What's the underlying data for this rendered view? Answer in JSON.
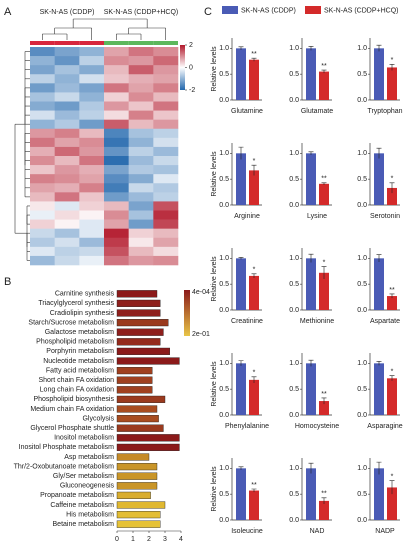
{
  "chart_data": [
    {
      "type": "heatmap",
      "label": "A",
      "groups": [
        "SK-N-AS (CDDP)",
        "SK-N-AS (CDDP+HCQ)"
      ],
      "group_colors": [
        "#d7263d",
        "#5cb85c"
      ],
      "colorscale": [
        "#2166ac",
        "#ffffff",
        "#b2182b"
      ],
      "zlim": [
        -2,
        2
      ],
      "zticks": [
        2,
        0,
        -2
      ],
      "z": [
        [
          -1.5,
          -1.2,
          -1.0,
          0.8,
          1.2,
          1.0
        ],
        [
          -1.0,
          -1.4,
          -0.6,
          1.0,
          0.9,
          1.3
        ],
        [
          -1.2,
          -0.8,
          -1.1,
          0.6,
          1.4,
          0.9
        ],
        [
          -0.6,
          -1.0,
          -0.4,
          0.5,
          0.7,
          0.8
        ],
        [
          -1.3,
          -0.9,
          -1.2,
          1.2,
          0.8,
          1.1
        ],
        [
          -0.8,
          -0.5,
          -1.0,
          0.4,
          1.0,
          0.6
        ],
        [
          -1.1,
          -1.3,
          -0.7,
          0.9,
          0.5,
          1.2
        ],
        [
          -0.4,
          -0.9,
          -0.6,
          0.3,
          1.1,
          0.5
        ],
        [
          -1.0,
          -0.7,
          -1.3,
          1.4,
          0.6,
          0.9
        ],
        [
          0.9,
          1.1,
          0.6,
          -1.6,
          -0.8,
          -0.6
        ],
        [
          1.2,
          0.8,
          1.0,
          -1.8,
          -1.0,
          -0.4
        ],
        [
          0.7,
          1.3,
          0.9,
          -1.4,
          -0.6,
          -0.9
        ],
        [
          1.0,
          0.6,
          1.2,
          -1.9,
          -0.9,
          -0.5
        ],
        [
          0.5,
          0.9,
          0.7,
          -1.2,
          -0.7,
          -0.8
        ],
        [
          1.1,
          1.0,
          0.8,
          -1.5,
          -1.1,
          -0.3
        ],
        [
          0.8,
          0.7,
          1.1,
          -1.7,
          -0.5,
          -0.7
        ],
        [
          0.6,
          1.2,
          0.5,
          -1.3,
          -0.9,
          -0.6
        ],
        [
          0.2,
          -0.3,
          0.4,
          0.6,
          -1.2,
          1.5
        ],
        [
          -0.2,
          0.3,
          0.1,
          1.0,
          -0.8,
          1.8
        ],
        [
          0.4,
          0.1,
          -0.3,
          0.8,
          -1.3,
          1.6
        ],
        [
          -0.5,
          -0.8,
          -0.3,
          1.9,
          0.4,
          0.6
        ],
        [
          -0.7,
          -0.4,
          -0.9,
          1.7,
          0.2,
          0.8
        ],
        [
          -0.3,
          -0.6,
          -0.5,
          1.5,
          0.6,
          0.3
        ],
        [
          -0.9,
          -0.5,
          -0.2,
          1.2,
          0.9,
          1.0
        ]
      ]
    },
    {
      "type": "hbar",
      "label": "B",
      "categories": [
        "Carnitine synthesis",
        "Triacylglycerol synthesis",
        "Cradiolipin synthesis",
        "Starch/Sucrose metabolism",
        "Galactose metabolism",
        "Phospholipid metabolism",
        "Porphyrin metabolism",
        "Nucleotide metabolism",
        "Fatty acid metabolism",
        "Short chain FA oxidation",
        "Long chain FA oxidation",
        "Phospholipid biosynthesis",
        "Medium chain FA oxidation",
        "Glycolysis",
        "Glycerol Phosphate shuttle",
        "Inositol metabolism",
        "Inositol Phosphate metabolism",
        "Asp metabolism",
        "Thr/2-Oxobutanoate metabolism",
        "Gly/Ser metabolism",
        "Gluconeogenesis",
        "Propanoate metabolism",
        "Caffeine metabolism",
        "His metabolism",
        "Betaine metabolism"
      ],
      "values": [
        2.5,
        2.7,
        2.7,
        3.2,
        2.9,
        2.7,
        3.3,
        3.9,
        2.2,
        2.2,
        2.2,
        3.0,
        2.5,
        2.6,
        2.9,
        3.9,
        3.9,
        2.0,
        2.5,
        2.5,
        2.5,
        2.1,
        3.0,
        2.7,
        2.7
      ],
      "colors": [
        "#8b1a1a",
        "#8e1f1c",
        "#8e1f1c",
        "#9a3a1e",
        "#8e1f1c",
        "#942a1c",
        "#8b1a1a",
        "#8b1a1a",
        "#a0401f",
        "#a0401f",
        "#a0401f",
        "#9a3a1e",
        "#a84c20",
        "#a84c20",
        "#9a3a1e",
        "#8b1a1a",
        "#8b1a1a",
        "#c58a28",
        "#c99528",
        "#c99528",
        "#c99528",
        "#d9ad2e",
        "#e0b830",
        "#e3bd33",
        "#e6c236"
      ],
      "colorscale": [
        "#8b1a1a",
        "#e8c547"
      ],
      "cticks": [
        {
          "value": 0.0004,
          "label": "4e-04"
        },
        {
          "value": 0.2,
          "label": "2e-01"
        }
      ],
      "xlim": [
        0,
        4
      ],
      "xticks": [
        0,
        1,
        2,
        3,
        4
      ]
    },
    {
      "type": "bar",
      "label": "C",
      "ylabel": "Relative levels",
      "series": [
        {
          "name": "SK-N-AS (CDDP)",
          "color": "#4a5bb5"
        },
        {
          "name": "SK-N-AS (CDDP+HCQ)",
          "color": "#d42a2a"
        }
      ],
      "ylim": [
        0,
        1.2
      ],
      "yticks": [
        {
          "value": 0,
          "label": "0.0"
        },
        0.5,
        {
          "value": 1,
          "label": "1.0"
        }
      ],
      "panels": [
        {
          "title": "Glutamine",
          "values": [
            1.0,
            0.78
          ],
          "errors": [
            0.03,
            0.03
          ],
          "annotation": "**"
        },
        {
          "title": "Glutamate",
          "values": [
            1.0,
            0.55
          ],
          "errors": [
            0.04,
            0.03
          ],
          "annotation": "**"
        },
        {
          "title": "Tryptophan",
          "values": [
            1.0,
            0.63
          ],
          "errors": [
            0.06,
            0.06
          ],
          "annotation": "*"
        },
        {
          "title": "Arginine",
          "values": [
            1.0,
            0.67
          ],
          "errors": [
            0.12,
            0.1
          ],
          "annotation": "*"
        },
        {
          "title": "Lysine",
          "values": [
            1.0,
            0.41
          ],
          "errors": [
            0.03,
            0.02
          ],
          "annotation": "**"
        },
        {
          "title": "Serotonin",
          "values": [
            1.0,
            0.33
          ],
          "errors": [
            0.1,
            0.1
          ],
          "annotation": "*"
        },
        {
          "title": "Creatinine",
          "values": [
            1.0,
            0.66
          ],
          "errors": [
            0.02,
            0.04
          ],
          "annotation": "*"
        },
        {
          "title": "Methionine",
          "values": [
            1.0,
            0.72
          ],
          "errors": [
            0.08,
            0.12
          ],
          "annotation": "*"
        },
        {
          "title": "Aspartate",
          "values": [
            1.0,
            0.27
          ],
          "errors": [
            0.07,
            0.04
          ],
          "annotation": "**"
        },
        {
          "title": "Phenylalanine",
          "values": [
            1.0,
            0.68
          ],
          "errors": [
            0.05,
            0.06
          ],
          "annotation": "*"
        },
        {
          "title": "Homocysteine",
          "values": [
            1.0,
            0.27
          ],
          "errors": [
            0.06,
            0.06
          ],
          "annotation": "**"
        },
        {
          "title": "Asparagine",
          "values": [
            1.0,
            0.71
          ],
          "errors": [
            0.04,
            0.05
          ],
          "annotation": "*"
        },
        {
          "title": "Isoleucine",
          "values": [
            1.0,
            0.57
          ],
          "errors": [
            0.03,
            0.03
          ],
          "annotation": "**"
        },
        {
          "title": "NAD",
          "values": [
            1.0,
            0.37
          ],
          "errors": [
            0.1,
            0.06
          ],
          "annotation": "**"
        },
        {
          "title": "NADP",
          "values": [
            1.0,
            0.63
          ],
          "errors": [
            0.12,
            0.13
          ],
          "annotation": "*"
        }
      ]
    }
  ]
}
